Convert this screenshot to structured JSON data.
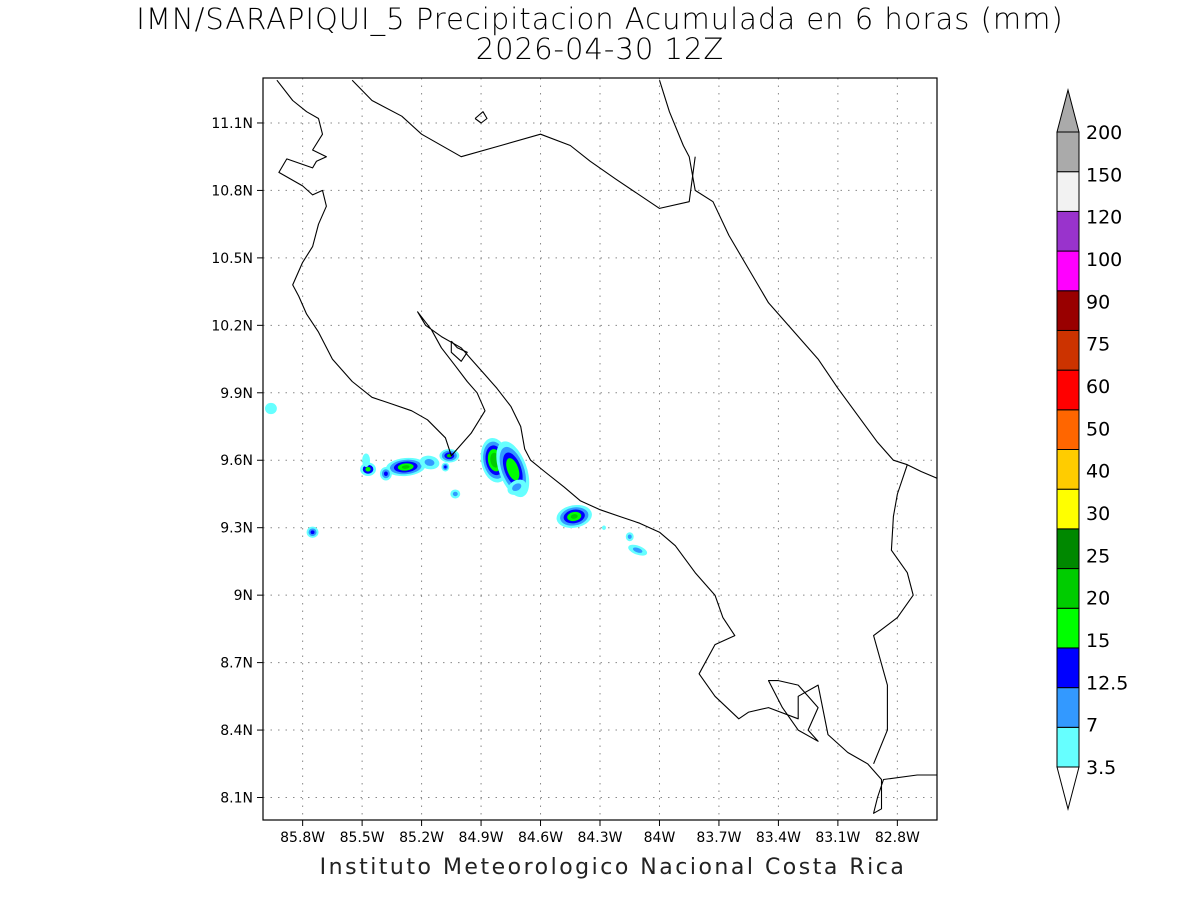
{
  "title": {
    "line1": "IMN/SARAPIQUI_5 Precipitacion Acumulada en 6 horas (mm)",
    "line2": "2026-04-30 12Z"
  },
  "credit": "Instituto Meteorologico Nacional Costa Rica",
  "map": {
    "lon_range": [
      -86.0,
      -82.6
    ],
    "lat_range": [
      8.0,
      11.3
    ],
    "grid": "dotted",
    "lat_ticks": [
      {
        "value": 11.1,
        "label": "11.1N"
      },
      {
        "value": 10.8,
        "label": "10.8N"
      },
      {
        "value": 10.5,
        "label": "10.5N"
      },
      {
        "value": 10.2,
        "label": "10.2N"
      },
      {
        "value": 9.9,
        "label": "9.9N"
      },
      {
        "value": 9.6,
        "label": "9.6N"
      },
      {
        "value": 9.3,
        "label": "9.3N"
      },
      {
        "value": 9.0,
        "label": "9N"
      },
      {
        "value": 8.7,
        "label": "8.7N"
      },
      {
        "value": 8.4,
        "label": "8.4N"
      },
      {
        "value": 8.1,
        "label": "8.1N"
      }
    ],
    "lon_ticks": [
      {
        "value": -85.8,
        "label": "85.8W"
      },
      {
        "value": -85.5,
        "label": "85.5W"
      },
      {
        "value": -85.2,
        "label": "85.2W"
      },
      {
        "value": -84.9,
        "label": "84.9W"
      },
      {
        "value": -84.6,
        "label": "84.6W"
      },
      {
        "value": -84.3,
        "label": "84.3W"
      },
      {
        "value": -84.0,
        "label": "84W"
      },
      {
        "value": -83.7,
        "label": "83.7W"
      },
      {
        "value": -83.4,
        "label": "83.4W"
      },
      {
        "value": -83.1,
        "label": "83.1W"
      },
      {
        "value": -82.8,
        "label": "82.8W"
      }
    ],
    "coastlines": [
      [
        [
          -85.93,
          11.29
        ],
        [
          -85.85,
          11.2
        ],
        [
          -85.78,
          11.15
        ],
        [
          -85.72,
          11.12
        ],
        [
          -85.7,
          11.05
        ],
        [
          -85.75,
          10.98
        ],
        [
          -85.68,
          10.95
        ],
        [
          -85.73,
          10.93
        ],
        [
          -85.75,
          10.9
        ],
        [
          -85.88,
          10.94
        ],
        [
          -85.92,
          10.88
        ],
        [
          -85.8,
          10.82
        ],
        [
          -85.75,
          10.78
        ],
        [
          -85.7,
          10.8
        ],
        [
          -85.68,
          10.73
        ],
        [
          -85.72,
          10.65
        ],
        [
          -85.75,
          10.55
        ],
        [
          -85.8,
          10.48
        ],
        [
          -85.85,
          10.38
        ],
        [
          -85.82,
          10.33
        ],
        [
          -85.78,
          10.25
        ],
        [
          -85.72,
          10.17
        ],
        [
          -85.65,
          10.05
        ],
        [
          -85.55,
          9.95
        ],
        [
          -85.45,
          9.88
        ],
        [
          -85.35,
          9.85
        ],
        [
          -85.25,
          9.82
        ],
        [
          -85.17,
          9.78
        ],
        [
          -85.08,
          9.7
        ],
        [
          -85.05,
          9.62
        ],
        [
          -84.95,
          9.72
        ],
        [
          -84.88,
          9.82
        ],
        [
          -84.92,
          9.9
        ],
        [
          -84.97,
          9.95
        ],
        [
          -85.03,
          10.02
        ],
        [
          -85.1,
          10.1
        ],
        [
          -85.15,
          10.18
        ],
        [
          -85.22,
          10.26
        ],
        [
          -85.18,
          10.2
        ],
        [
          -85.1,
          10.15
        ],
        [
          -85.0,
          10.1
        ],
        [
          -84.95,
          10.05
        ],
        [
          -84.88,
          9.98
        ],
        [
          -84.82,
          9.92
        ],
        [
          -84.75,
          9.84
        ],
        [
          -84.7,
          9.75
        ],
        [
          -84.68,
          9.65
        ],
        [
          -84.65,
          9.6
        ],
        [
          -84.58,
          9.55
        ],
        [
          -84.48,
          9.48
        ],
        [
          -84.4,
          9.42
        ],
        [
          -84.3,
          9.38
        ],
        [
          -84.2,
          9.35
        ],
        [
          -84.1,
          9.32
        ],
        [
          -84.0,
          9.28
        ],
        [
          -83.92,
          9.22
        ],
        [
          -83.82,
          9.1
        ],
        [
          -83.72,
          9.0
        ],
        [
          -83.68,
          8.9
        ],
        [
          -83.62,
          8.82
        ],
        [
          -83.72,
          8.78
        ],
        [
          -83.8,
          8.65
        ],
        [
          -83.72,
          8.55
        ],
        [
          -83.6,
          8.45
        ],
        [
          -83.55,
          8.48
        ],
        [
          -83.45,
          8.5
        ],
        [
          -83.3,
          8.45
        ],
        [
          -83.3,
          8.55
        ],
        [
          -83.2,
          8.6
        ],
        [
          -83.15,
          8.38
        ],
        [
          -83.05,
          8.3
        ],
        [
          -82.95,
          8.25
        ],
        [
          -82.88,
          8.18
        ],
        [
          -82.88,
          8.05
        ],
        [
          -82.92,
          8.03
        ],
        [
          -82.9,
          8.1
        ],
        [
          -82.87,
          8.18
        ],
        [
          -82.7,
          8.2
        ],
        [
          -82.6,
          8.2
        ]
      ],
      [
        [
          -84.0,
          11.29
        ],
        [
          -83.95,
          11.15
        ],
        [
          -83.88,
          11.0
        ],
        [
          -83.85,
          10.95
        ],
        [
          -83.82,
          10.8
        ],
        [
          -83.73,
          10.75
        ],
        [
          -83.65,
          10.6
        ],
        [
          -83.55,
          10.45
        ],
        [
          -83.45,
          10.3
        ],
        [
          -83.35,
          10.2
        ],
        [
          -83.2,
          10.05
        ],
        [
          -83.1,
          9.92
        ],
        [
          -83.0,
          9.8
        ],
        [
          -82.9,
          9.68
        ],
        [
          -82.82,
          9.6
        ],
        [
          -82.75,
          9.58
        ],
        [
          -82.68,
          9.55
        ],
        [
          -82.6,
          9.52
        ]
      ],
      [
        [
          -85.55,
          11.29
        ],
        [
          -85.45,
          11.2
        ],
        [
          -85.3,
          11.13
        ],
        [
          -85.2,
          11.05
        ],
        [
          -85.0,
          10.95
        ],
        [
          -84.8,
          11.0
        ],
        [
          -84.6,
          11.05
        ],
        [
          -84.45,
          11.0
        ],
        [
          -84.35,
          10.93
        ],
        [
          -84.22,
          10.85
        ],
        [
          -84.0,
          10.72
        ],
        [
          -83.85,
          10.75
        ],
        [
          -83.82,
          10.95
        ]
      ],
      [
        [
          -83.4,
          8.62
        ],
        [
          -83.3,
          8.6
        ],
        [
          -83.25,
          8.55
        ],
        [
          -83.2,
          8.5
        ],
        [
          -83.25,
          8.4
        ],
        [
          -83.2,
          8.35
        ],
        [
          -83.3,
          8.4
        ],
        [
          -83.38,
          8.5
        ],
        [
          -83.45,
          8.62
        ],
        [
          -83.4,
          8.62
        ]
      ],
      [
        [
          -85.05,
          10.13
        ],
        [
          -85.02,
          10.1
        ],
        [
          -84.97,
          10.08
        ],
        [
          -85.0,
          10.04
        ],
        [
          -85.05,
          10.08
        ],
        [
          -85.05,
          10.13
        ]
      ],
      [
        [
          -84.93,
          11.12
        ],
        [
          -84.9,
          11.1
        ],
        [
          -84.87,
          11.12
        ],
        [
          -84.89,
          11.15
        ],
        [
          -84.93,
          11.12
        ]
      ],
      [
        [
          -82.75,
          9.58
        ],
        [
          -82.8,
          9.45
        ],
        [
          -82.82,
          9.35
        ],
        [
          -82.83,
          9.2
        ],
        [
          -82.75,
          9.1
        ],
        [
          -82.72,
          9.0
        ],
        [
          -82.8,
          8.9
        ],
        [
          -82.92,
          8.82
        ],
        [
          -82.85,
          8.6
        ],
        [
          -82.85,
          8.4
        ],
        [
          -82.92,
          8.25
        ]
      ]
    ]
  },
  "legend": {
    "labels": [
      "3.5",
      "7",
      "12.5",
      "15",
      "20",
      "25",
      "30",
      "40",
      "50",
      "60",
      "75",
      "90",
      "100",
      "120",
      "150",
      "200"
    ],
    "colors": [
      "#ffffff",
      "#66ffff",
      "#3399ff",
      "#0000ff",
      "#00ff00",
      "#00cc00",
      "#008800",
      "#ffff00",
      "#ffcc00",
      "#ff6600",
      "#ff0000",
      "#cc3300",
      "#990000",
      "#ff00ff",
      "#9933cc",
      "#f2f2f2",
      "#aaaaaa"
    ]
  },
  "precip_cells": [
    {
      "lon": -84.83,
      "lat": 9.6,
      "rx": 0.07,
      "ry": 0.1,
      "rot": -10,
      "bands": [
        5,
        5,
        4,
        3,
        2,
        1
      ]
    },
    {
      "lon": -84.74,
      "lat": 9.56,
      "rx": 0.07,
      "ry": 0.13,
      "rot": -20,
      "bands": [
        4,
        4,
        3,
        2,
        1
      ]
    },
    {
      "lon": -84.43,
      "lat": 9.35,
      "rx": 0.09,
      "ry": 0.05,
      "rot": -10,
      "bands": [
        5,
        4,
        3,
        2,
        1
      ]
    },
    {
      "lon": -85.28,
      "lat": 9.57,
      "rx": 0.1,
      "ry": 0.04,
      "rot": -5,
      "bands": [
        5,
        4,
        3,
        2,
        1
      ]
    },
    {
      "lon": -85.06,
      "lat": 9.62,
      "rx": 0.05,
      "ry": 0.03,
      "rot": 0,
      "bands": [
        5,
        3,
        2,
        1
      ]
    },
    {
      "lon": -85.47,
      "lat": 9.56,
      "rx": 0.04,
      "ry": 0.03,
      "rot": 0,
      "bands": [
        4,
        3,
        1
      ]
    },
    {
      "lon": -85.38,
      "lat": 9.54,
      "rx": 0.03,
      "ry": 0.03,
      "rot": 0,
      "bands": [
        3,
        2,
        1
      ]
    },
    {
      "lon": -85.16,
      "lat": 9.59,
      "rx": 0.05,
      "ry": 0.03,
      "rot": 10,
      "bands": [
        2,
        1
      ]
    },
    {
      "lon": -85.75,
      "lat": 9.28,
      "rx": 0.03,
      "ry": 0.025,
      "rot": 0,
      "bands": [
        3,
        2,
        1
      ]
    },
    {
      "lon": -85.03,
      "lat": 9.45,
      "rx": 0.025,
      "ry": 0.02,
      "rot": 0,
      "bands": [
        2,
        1
      ]
    },
    {
      "lon": -84.11,
      "lat": 9.2,
      "rx": 0.05,
      "ry": 0.02,
      "rot": 20,
      "bands": [
        2,
        1
      ]
    },
    {
      "lon": -84.15,
      "lat": 9.26,
      "rx": 0.02,
      "ry": 0.02,
      "rot": 0,
      "bands": [
        2,
        1
      ]
    },
    {
      "lon": -85.96,
      "lat": 9.83,
      "rx": 0.03,
      "ry": 0.025,
      "rot": 0,
      "bands": [
        1
      ]
    },
    {
      "lon": -85.48,
      "lat": 9.6,
      "rx": 0.02,
      "ry": 0.03,
      "rot": 0,
      "bands": [
        1
      ]
    },
    {
      "lon": -85.08,
      "lat": 9.57,
      "rx": 0.02,
      "ry": 0.02,
      "rot": 0,
      "bands": [
        3,
        2,
        1
      ]
    },
    {
      "lon": -84.28,
      "lat": 9.3,
      "rx": 0.01,
      "ry": 0.01,
      "rot": 0,
      "bands": [
        1
      ]
    },
    {
      "lon": -84.72,
      "lat": 9.48,
      "rx": 0.05,
      "ry": 0.03,
      "rot": -30,
      "bands": [
        2,
        1
      ]
    }
  ]
}
